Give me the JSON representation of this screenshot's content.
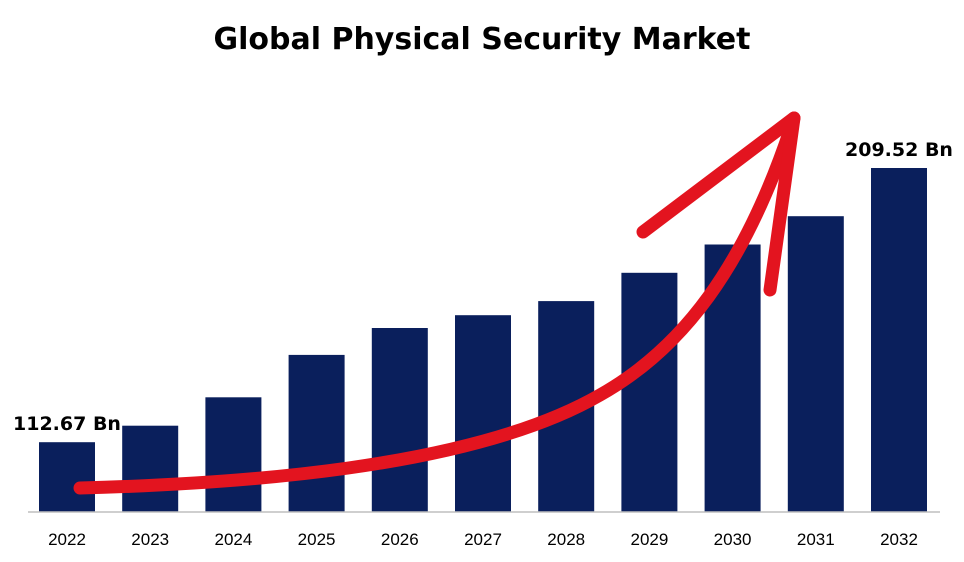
{
  "chart_data": {
    "type": "bar",
    "title": "Global Physical Security Market",
    "categories": [
      "2022",
      "2023",
      "2024",
      "2025",
      "2026",
      "2027",
      "2028",
      "2029",
      "2030",
      "2031",
      "2032"
    ],
    "values": [
      112.67,
      118.5,
      128.5,
      143.5,
      153.0,
      157.5,
      162.5,
      172.5,
      182.5,
      192.5,
      209.52
    ],
    "data_labels": [
      {
        "index": 0,
        "text": "112.67 Bn"
      },
      {
        "index": 10,
        "text": "209.52 Bn"
      }
    ],
    "ylim": [
      88,
      230
    ],
    "xlabel": "",
    "ylabel": "",
    "grid": false,
    "legend": "none",
    "bar_color": "#0a1f5c",
    "axis_color": "#bfbfbf",
    "annotation": {
      "type": "trend-arrow",
      "color": "#e3141f"
    }
  }
}
